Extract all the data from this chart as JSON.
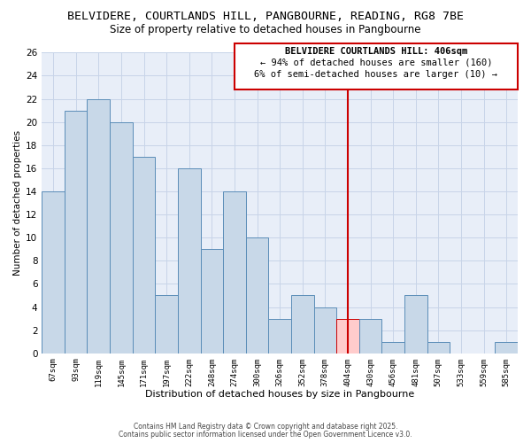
{
  "title": "BELVIDERE, COURTLANDS HILL, PANGBOURNE, READING, RG8 7BE",
  "subtitle": "Size of property relative to detached houses in Pangbourne",
  "xlabel": "Distribution of detached houses by size in Pangbourne",
  "ylabel": "Number of detached properties",
  "categories": [
    "67sqm",
    "93sqm",
    "119sqm",
    "145sqm",
    "171sqm",
    "197sqm",
    "222sqm",
    "248sqm",
    "274sqm",
    "300sqm",
    "326sqm",
    "352sqm",
    "378sqm",
    "404sqm",
    "430sqm",
    "456sqm",
    "481sqm",
    "507sqm",
    "533sqm",
    "559sqm",
    "585sqm"
  ],
  "values": [
    14,
    21,
    22,
    20,
    17,
    5,
    16,
    9,
    14,
    10,
    3,
    5,
    4,
    3,
    3,
    1,
    5,
    1,
    0,
    0,
    1
  ],
  "bar_color": "#c8d8e8",
  "bar_edge_color": "#5b8db8",
  "highlight_index": 13,
  "highlight_color": "#ffcccc",
  "highlight_edge_color": "#cc0000",
  "vline_color": "#cc0000",
  "ylim": [
    0,
    26
  ],
  "yticks": [
    0,
    2,
    4,
    6,
    8,
    10,
    12,
    14,
    16,
    18,
    20,
    22,
    24,
    26
  ],
  "annotation_title": "BELVIDERE COURTLANDS HILL: 406sqm",
  "annotation_line1": "← 94% of detached houses are smaller (160)",
  "annotation_line2": "6% of semi-detached houses are larger (10) →",
  "annotation_box_edge_color": "#cc0000",
  "grid_color": "#c8d4e8",
  "background_color": "#e8eef8",
  "footer1": "Contains HM Land Registry data © Crown copyright and database right 2025.",
  "footer2": "Contains public sector information licensed under the Open Government Licence v3.0.",
  "title_fontsize": 9.5,
  "subtitle_fontsize": 8.5,
  "annotation_fontsize": 7.5
}
